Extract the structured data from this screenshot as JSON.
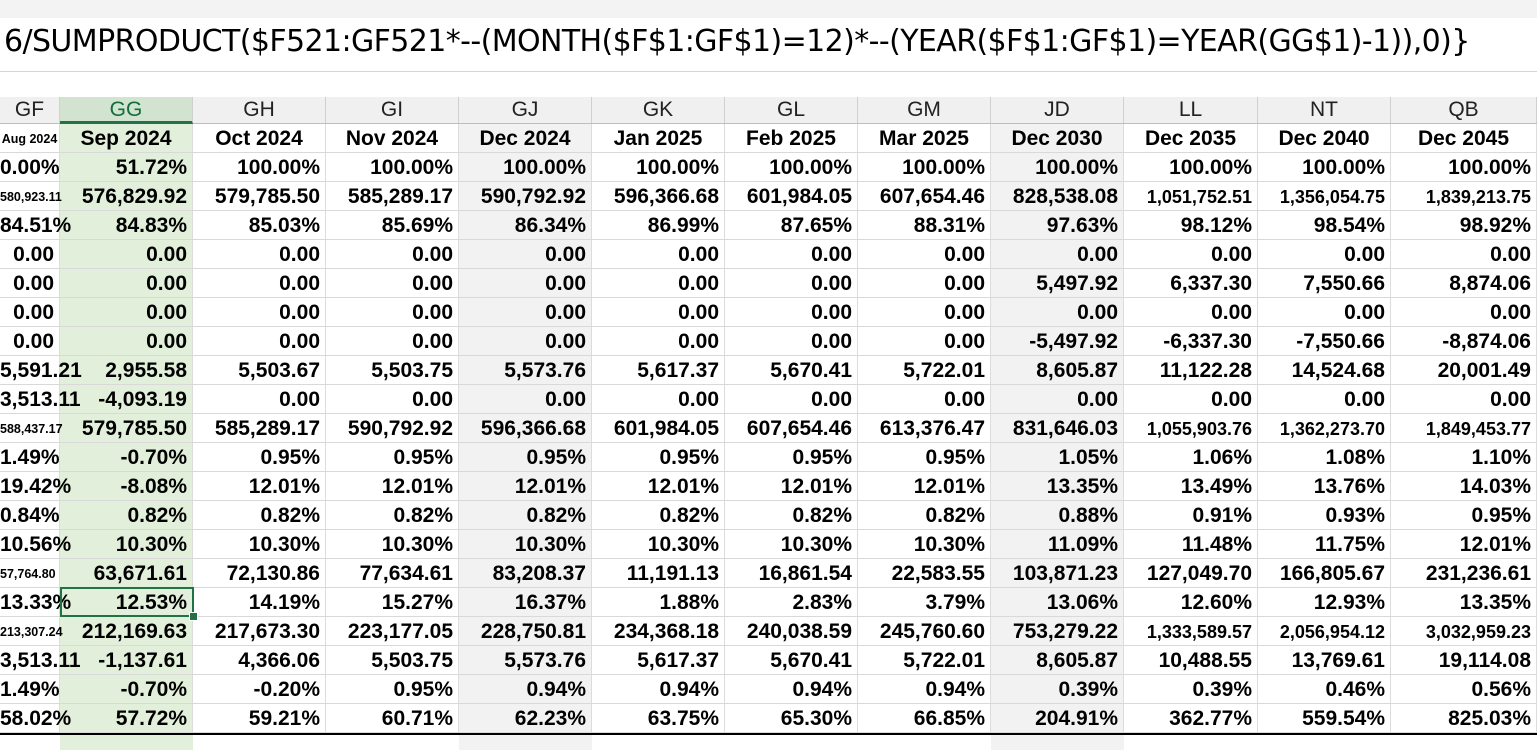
{
  "formula": "6/SUMPRODUCT($F521:GF521*--(MONTH($F$1:GF$1)=12)*--(YEAR($F$1:GF$1)=YEAR(GG$1)-1)),0)}",
  "colors": {
    "selected_column": "#e2efda",
    "selected_header": "#d2e3d0",
    "accent": "#217346",
    "shaded_column": "#f2f2f2"
  },
  "columns": [
    {
      "letter": "GF",
      "date": "Aug 2024"
    },
    {
      "letter": "GG",
      "date": "Sep 2024"
    },
    {
      "letter": "GH",
      "date": "Oct 2024"
    },
    {
      "letter": "GI",
      "date": "Nov 2024"
    },
    {
      "letter": "GJ",
      "date": "Dec 2024"
    },
    {
      "letter": "GK",
      "date": "Jan 2025"
    },
    {
      "letter": "GL",
      "date": "Feb 2025"
    },
    {
      "letter": "GM",
      "date": "Mar 2025"
    },
    {
      "letter": "JD",
      "date": "Dec 2030"
    },
    {
      "letter": "LL",
      "date": "Dec 2035"
    },
    {
      "letter": "NT",
      "date": "Dec 2040"
    },
    {
      "letter": "QB",
      "date": "Dec 2045"
    }
  ],
  "rows": [
    [
      "0.00%",
      "51.72%",
      "100.00%",
      "100.00%",
      "100.00%",
      "100.00%",
      "100.00%",
      "100.00%",
      "100.00%",
      "100.00%",
      "100.00%",
      "100.00%"
    ],
    [
      "580,923.11",
      "576,829.92",
      "579,785.50",
      "585,289.17",
      "590,792.92",
      "596,366.68",
      "601,984.05",
      "607,654.46",
      "828,538.08",
      "1,051,752.51",
      "1,356,054.75",
      "1,839,213.75"
    ],
    [
      "84.51%",
      "84.83%",
      "85.03%",
      "85.69%",
      "86.34%",
      "86.99%",
      "87.65%",
      "88.31%",
      "97.63%",
      "98.12%",
      "98.54%",
      "98.92%"
    ],
    [
      "0.00",
      "0.00",
      "0.00",
      "0.00",
      "0.00",
      "0.00",
      "0.00",
      "0.00",
      "0.00",
      "0.00",
      "0.00",
      "0.00"
    ],
    [
      "0.00",
      "0.00",
      "0.00",
      "0.00",
      "0.00",
      "0.00",
      "0.00",
      "0.00",
      "5,497.92",
      "6,337.30",
      "7,550.66",
      "8,874.06"
    ],
    [
      "0.00",
      "0.00",
      "0.00",
      "0.00",
      "0.00",
      "0.00",
      "0.00",
      "0.00",
      "0.00",
      "0.00",
      "0.00",
      "0.00"
    ],
    [
      "0.00",
      "0.00",
      "0.00",
      "0.00",
      "0.00",
      "0.00",
      "0.00",
      "0.00",
      "-5,497.92",
      "-6,337.30",
      "-7,550.66",
      "-8,874.06"
    ],
    [
      "5,591.21",
      "2,955.58",
      "5,503.67",
      "5,503.75",
      "5,573.76",
      "5,617.37",
      "5,670.41",
      "5,722.01",
      "8,605.87",
      "11,122.28",
      "14,524.68",
      "20,001.49"
    ],
    [
      "3,513.11",
      "-4,093.19",
      "0.00",
      "0.00",
      "0.00",
      "0.00",
      "0.00",
      "0.00",
      "0.00",
      "0.00",
      "0.00",
      "0.00"
    ],
    [
      "588,437.17",
      "579,785.50",
      "585,289.17",
      "590,792.92",
      "596,366.68",
      "601,984.05",
      "607,654.46",
      "613,376.47",
      "831,646.03",
      "1,055,903.76",
      "1,362,273.70",
      "1,849,453.77"
    ],
    [
      "1.49%",
      "-0.70%",
      "0.95%",
      "0.95%",
      "0.95%",
      "0.95%",
      "0.95%",
      "0.95%",
      "1.05%",
      "1.06%",
      "1.08%",
      "1.10%"
    ],
    [
      "19.42%",
      "-8.08%",
      "12.01%",
      "12.01%",
      "12.01%",
      "12.01%",
      "12.01%",
      "12.01%",
      "13.35%",
      "13.49%",
      "13.76%",
      "14.03%"
    ],
    [
      "0.84%",
      "0.82%",
      "0.82%",
      "0.82%",
      "0.82%",
      "0.82%",
      "0.82%",
      "0.82%",
      "0.88%",
      "0.91%",
      "0.93%",
      "0.95%"
    ],
    [
      "10.56%",
      "10.30%",
      "10.30%",
      "10.30%",
      "10.30%",
      "10.30%",
      "10.30%",
      "10.30%",
      "11.09%",
      "11.48%",
      "11.75%",
      "12.01%"
    ],
    [
      "57,764.80",
      "63,671.61",
      "72,130.86",
      "77,634.61",
      "83,208.37",
      "11,191.13",
      "16,861.54",
      "22,583.55",
      "103,871.23",
      "127,049.70",
      "166,805.67",
      "231,236.61"
    ],
    [
      "13.33%",
      "12.53%",
      "14.19%",
      "15.27%",
      "16.37%",
      "1.88%",
      "2.83%",
      "3.79%",
      "13.06%",
      "12.60%",
      "12.93%",
      "13.35%"
    ],
    [
      "213,307.24",
      "212,169.63",
      "217,673.30",
      "223,177.05",
      "228,750.81",
      "234,368.18",
      "240,038.59",
      "245,760.60",
      "753,279.22",
      "1,333,589.57",
      "2,056,954.12",
      "3,032,959.23"
    ],
    [
      "3,513.11",
      "-1,137.61",
      "4,366.06",
      "5,503.75",
      "5,573.76",
      "5,617.37",
      "5,670.41",
      "5,722.01",
      "8,605.87",
      "10,488.55",
      "13,769.61",
      "19,114.08"
    ],
    [
      "1.49%",
      "-0.70%",
      "-0.20%",
      "0.95%",
      "0.94%",
      "0.94%",
      "0.94%",
      "0.94%",
      "0.39%",
      "0.39%",
      "0.46%",
      "0.56%"
    ],
    [
      "58.02%",
      "57.72%",
      "59.21%",
      "60.71%",
      "62.23%",
      "63.75%",
      "65.30%",
      "66.85%",
      "204.91%",
      "362.77%",
      "559.54%",
      "825.03%"
    ]
  ]
}
